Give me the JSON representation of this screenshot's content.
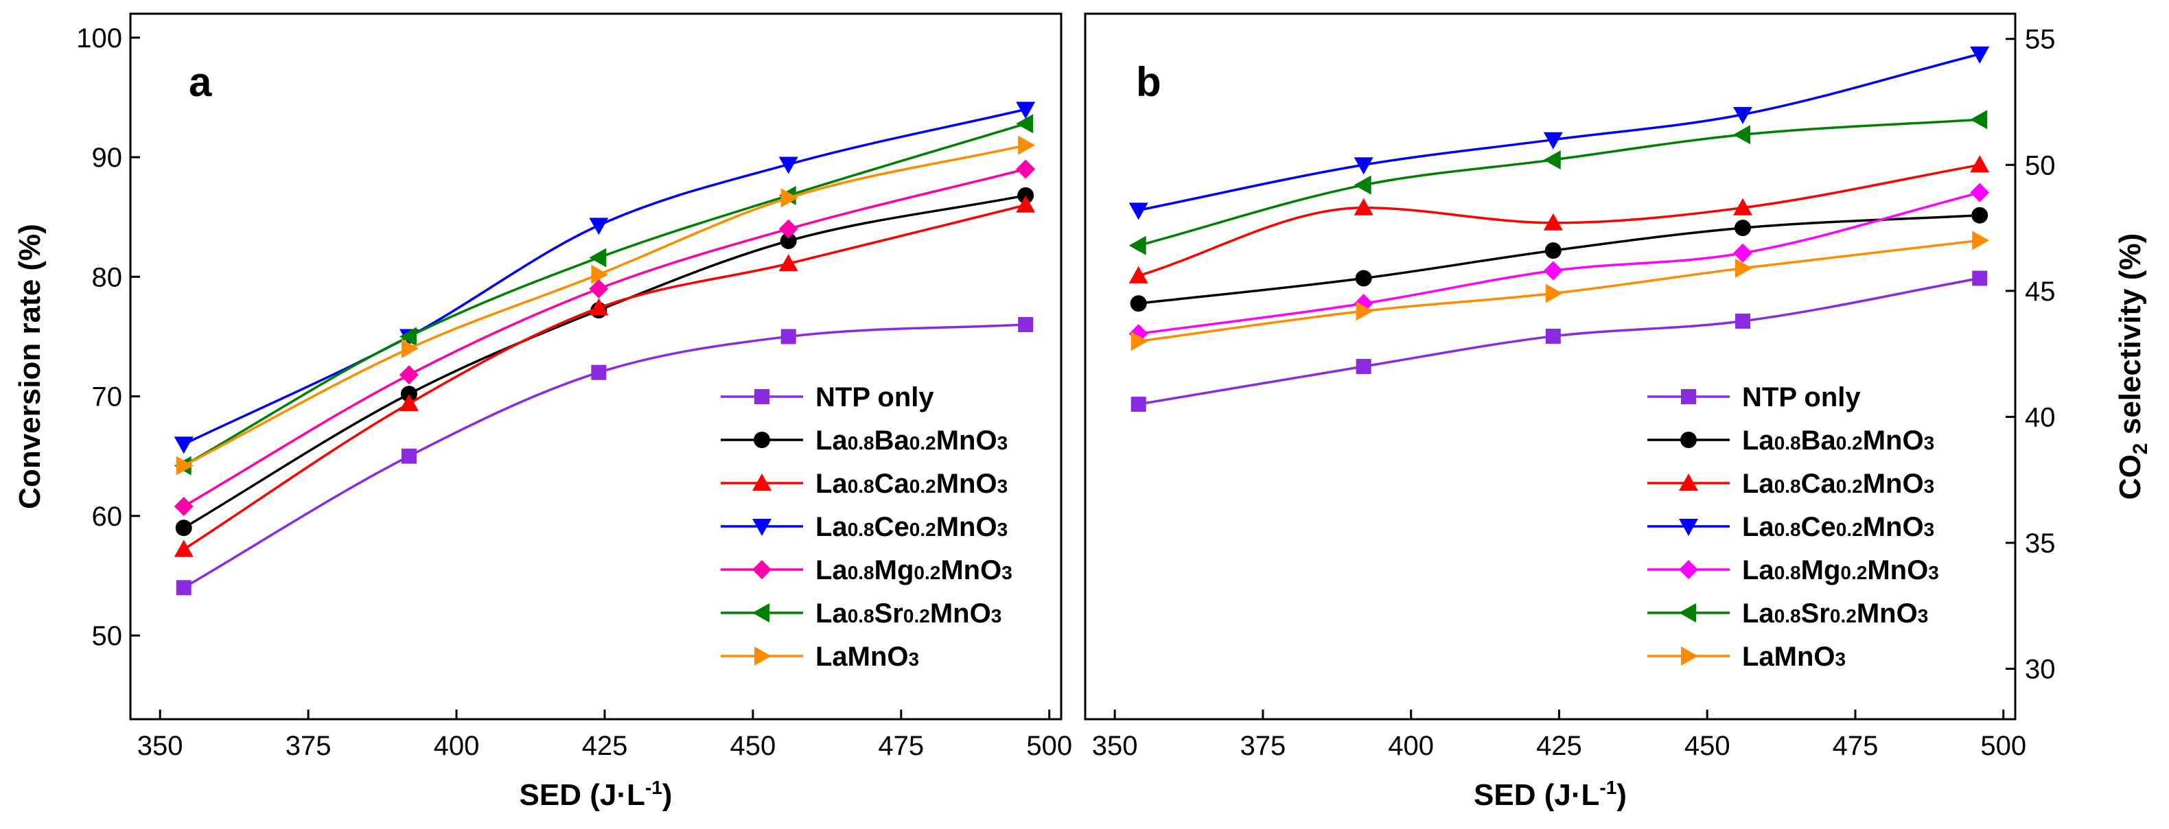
{
  "chart_data": [
    {
      "type": "line",
      "panel_label": "a",
      "xlabel": "SED (J·L",
      "xlabel_sup": "-1",
      "xlabel_close": ")",
      "ylabel": "Conversion rate (%)",
      "xlim": [
        345,
        502
      ],
      "ylim": [
        43,
        102
      ],
      "xticks": [
        350,
        375,
        400,
        425,
        450,
        475,
        500
      ],
      "yticks": [
        50,
        60,
        70,
        80,
        90,
        100
      ],
      "legend_position": "bottom-right",
      "x": [
        354,
        392,
        424,
        456,
        496
      ],
      "series": [
        {
          "name": "NTP only",
          "label_parts": [
            {
              "t": "NTP only",
              "sub": false
            }
          ],
          "color": "#8a2be2",
          "marker": "square",
          "values": [
            54,
            65,
            72,
            75,
            76
          ]
        },
        {
          "name": "La0.8Ba0.2MnO3",
          "label_parts": [
            {
              "t": "La",
              "sub": false
            },
            {
              "t": "0.8",
              "sub": true
            },
            {
              "t": "Ba",
              "sub": false
            },
            {
              "t": "0.2",
              "sub": true
            },
            {
              "t": "MnO",
              "sub": false
            },
            {
              "t": "3",
              "sub": true
            }
          ],
          "color": "#000000",
          "marker": "circle",
          "values": [
            59,
            70.2,
            77.2,
            83,
            86.8
          ]
        },
        {
          "name": "La0.8Ca0.2MnO3",
          "label_parts": [
            {
              "t": "La",
              "sub": false
            },
            {
              "t": "0.8",
              "sub": true
            },
            {
              "t": "Ca",
              "sub": false
            },
            {
              "t": "0.2",
              "sub": true
            },
            {
              "t": "MnO",
              "sub": false
            },
            {
              "t": "3",
              "sub": true
            }
          ],
          "color": "#ff0000",
          "marker": "triangle-up",
          "values": [
            57.2,
            69.4,
            77.4,
            81.1,
            86
          ]
        },
        {
          "name": "La0.8Ce0.2MnO3",
          "label_parts": [
            {
              "t": "La",
              "sub": false
            },
            {
              "t": "0.8",
              "sub": true
            },
            {
              "t": "Ce",
              "sub": false
            },
            {
              "t": "0.2",
              "sub": true
            },
            {
              "t": "MnO",
              "sub": false
            },
            {
              "t": "3",
              "sub": true
            }
          ],
          "color": "#0000ff",
          "marker": "triangle-down",
          "values": [
            66,
            75,
            84.3,
            89.4,
            94
          ]
        },
        {
          "name": "La0.8Mg0.2MnO3",
          "label_parts": [
            {
              "t": "La",
              "sub": false
            },
            {
              "t": "0.8",
              "sub": true
            },
            {
              "t": "Mg",
              "sub": false
            },
            {
              "t": "0.2",
              "sub": true
            },
            {
              "t": "MnO",
              "sub": false
            },
            {
              "t": "3",
              "sub": true
            }
          ],
          "color": "#ff00aa",
          "marker": "diamond",
          "values": [
            60.8,
            71.8,
            79,
            84,
            89
          ]
        },
        {
          "name": "La0.8Sr0.2MnO3",
          "label_parts": [
            {
              "t": "La",
              "sub": false
            },
            {
              "t": "0.8",
              "sub": true
            },
            {
              "t": "Sr",
              "sub": false
            },
            {
              "t": "0.2",
              "sub": true
            },
            {
              "t": "MnO",
              "sub": false
            },
            {
              "t": "3",
              "sub": true
            }
          ],
          "color": "#008000",
          "marker": "triangle-left",
          "values": [
            64.2,
            75,
            81.6,
            86.8,
            92.8
          ]
        },
        {
          "name": "LaMnO3",
          "label_parts": [
            {
              "t": "LaMnO",
              "sub": false
            },
            {
              "t": "3",
              "sub": true
            }
          ],
          "color": "#ff8c00",
          "marker": "triangle-right",
          "values": [
            64.2,
            74,
            80.2,
            86.6,
            91
          ]
        }
      ]
    },
    {
      "type": "line",
      "panel_label": "b",
      "xlabel": "SED (J·L",
      "xlabel_sup": "-1",
      "xlabel_close": ")",
      "ylabel": "CO",
      "ylabel_sub": "2",
      "ylabel_rest": " selectivity (%)",
      "xlim": [
        345,
        502
      ],
      "ylim": [
        28,
        56
      ],
      "xticks": [
        350,
        375,
        400,
        425,
        450,
        475,
        500
      ],
      "yticks": [
        30,
        35,
        40,
        45,
        50,
        55
      ],
      "legend_position": "bottom-right",
      "x": [
        354,
        392,
        424,
        456,
        496
      ],
      "series": [
        {
          "name": "NTP only",
          "label_parts": [
            {
              "t": "NTP only",
              "sub": false
            }
          ],
          "color": "#8a2be2",
          "marker": "square",
          "values": [
            40.5,
            42,
            43.2,
            43.8,
            45.5
          ]
        },
        {
          "name": "La0.8Ba0.2MnO3",
          "label_parts": [
            {
              "t": "La",
              "sub": false
            },
            {
              "t": "0.8",
              "sub": true
            },
            {
              "t": "Ba",
              "sub": false
            },
            {
              "t": "0.2",
              "sub": true
            },
            {
              "t": "MnO",
              "sub": false
            },
            {
              "t": "3",
              "sub": true
            }
          ],
          "color": "#000000",
          "marker": "circle",
          "values": [
            44.5,
            45.5,
            46.6,
            47.5,
            48
          ]
        },
        {
          "name": "La0.8Ca0.2MnO3",
          "label_parts": [
            {
              "t": "La",
              "sub": false
            },
            {
              "t": "0.8",
              "sub": true
            },
            {
              "t": "Ca",
              "sub": false
            },
            {
              "t": "0.2",
              "sub": true
            },
            {
              "t": "MnO",
              "sub": false
            },
            {
              "t": "3",
              "sub": true
            }
          ],
          "color": "#ff0000",
          "marker": "triangle-up",
          "values": [
            45.6,
            48.3,
            47.7,
            48.3,
            50
          ]
        },
        {
          "name": "La0.8Ce0.2MnO3",
          "label_parts": [
            {
              "t": "La",
              "sub": false
            },
            {
              "t": "0.8",
              "sub": true
            },
            {
              "t": "Ce",
              "sub": false
            },
            {
              "t": "0.2",
              "sub": true
            },
            {
              "t": "MnO",
              "sub": false
            },
            {
              "t": "3",
              "sub": true
            }
          ],
          "color": "#0000ff",
          "marker": "triangle-down",
          "values": [
            48.2,
            50,
            51,
            52,
            54.4
          ]
        },
        {
          "name": "La0.8Mg0.2MnO3",
          "label_parts": [
            {
              "t": "La",
              "sub": false
            },
            {
              "t": "0.8",
              "sub": true
            },
            {
              "t": "Mg",
              "sub": false
            },
            {
              "t": "0.2",
              "sub": true
            },
            {
              "t": "MnO",
              "sub": false
            },
            {
              "t": "3",
              "sub": true
            }
          ],
          "color": "#ff00ff",
          "marker": "diamond",
          "values": [
            43.3,
            44.5,
            45.8,
            46.5,
            48.9
          ]
        },
        {
          "name": "La0.8Sr0.2MnO3",
          "label_parts": [
            {
              "t": "La",
              "sub": false
            },
            {
              "t": "0.8",
              "sub": true
            },
            {
              "t": "Sr",
              "sub": false
            },
            {
              "t": "0.2",
              "sub": true
            },
            {
              "t": "MnO",
              "sub": false
            },
            {
              "t": "3",
              "sub": true
            }
          ],
          "color": "#008000",
          "marker": "triangle-left",
          "values": [
            46.8,
            49.2,
            50.2,
            51.2,
            51.8
          ]
        },
        {
          "name": "LaMnO3",
          "label_parts": [
            {
              "t": "LaMnO",
              "sub": false
            },
            {
              "t": "3",
              "sub": true
            }
          ],
          "color": "#ff8c00",
          "marker": "triangle-right",
          "values": [
            43,
            44.2,
            44.9,
            45.9,
            47
          ]
        }
      ]
    }
  ]
}
